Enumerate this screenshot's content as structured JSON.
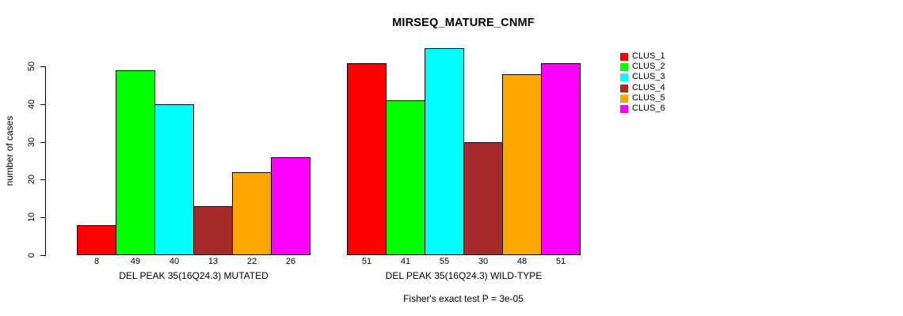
{
  "chart_data": {
    "type": "bar",
    "title": "MIRSEQ_MATURE_CNMF",
    "ylabel": "number of cases",
    "xlabel": "",
    "footnote": "Fisher's exact test P = 3e-05",
    "ylim": [
      0,
      55
    ],
    "yticks": [
      0,
      10,
      20,
      30,
      40,
      50
    ],
    "grid": false,
    "legend_position": "right",
    "bar_border_color": "#000000",
    "categories": [
      "DEL PEAK 35(16Q24.3) MUTATED",
      "DEL PEAK 35(16Q24.3) WILD-TYPE"
    ],
    "series": [
      {
        "name": "CLUS_1",
        "color": "#ff0000",
        "values": [
          8,
          51
        ]
      },
      {
        "name": "CLUS_2",
        "color": "#00ff00",
        "values": [
          49,
          41
        ]
      },
      {
        "name": "CLUS_3",
        "color": "#00ffff",
        "values": [
          40,
          55
        ]
      },
      {
        "name": "CLUS_4",
        "color": "#a52a2a",
        "values": [
          13,
          30
        ]
      },
      {
        "name": "CLUS_5",
        "color": "#ffa500",
        "values": [
          22,
          48
        ]
      },
      {
        "name": "CLUS_6",
        "color": "#ff00ff",
        "values": [
          26,
          51
        ]
      }
    ]
  }
}
